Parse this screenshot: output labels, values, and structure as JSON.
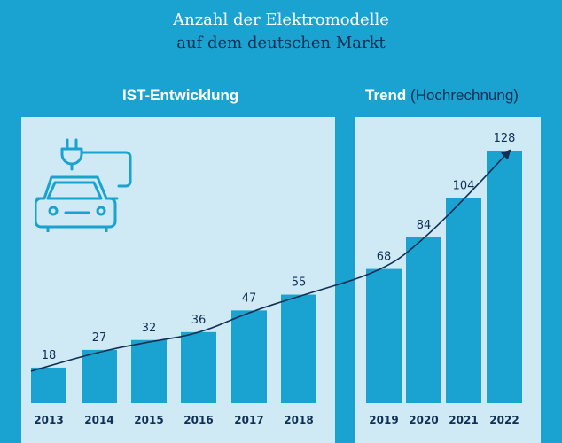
{
  "title_line1": "Anzahl der Elektromodelle",
  "title_line2": "auf dem deutschen Markt",
  "section_ist": "IST-Entwicklung",
  "section_trend_bold": "Trend",
  "section_trend_normal": "(Hochrechnung)",
  "colors": {
    "background": "#1aa3d0",
    "panel": "#cfeaf5",
    "bar": "#1aa3d0",
    "text_dark": "#0f2f55",
    "arrow": "#0f2f55"
  },
  "icons": [
    "car-with-plug-icon"
  ],
  "chart_data": {
    "type": "bar",
    "title": "Anzahl der Elektromodelle auf dem deutschen Markt",
    "categories": [
      "2013",
      "2014",
      "2015",
      "2016",
      "2017",
      "2018",
      "2019",
      "2020",
      "2021",
      "2022"
    ],
    "values": [
      18,
      27,
      32,
      36,
      47,
      55,
      68,
      84,
      104,
      128
    ],
    "groups": [
      {
        "name": "IST-Entwicklung",
        "categories": [
          "2013",
          "2014",
          "2015",
          "2016",
          "2017",
          "2018"
        ]
      },
      {
        "name": "Trend (Hochrechnung)",
        "categories": [
          "2019",
          "2020",
          "2021",
          "2022"
        ]
      }
    ],
    "trend_arrow": true,
    "grid": false,
    "ylim": [
      0,
      128
    ]
  }
}
